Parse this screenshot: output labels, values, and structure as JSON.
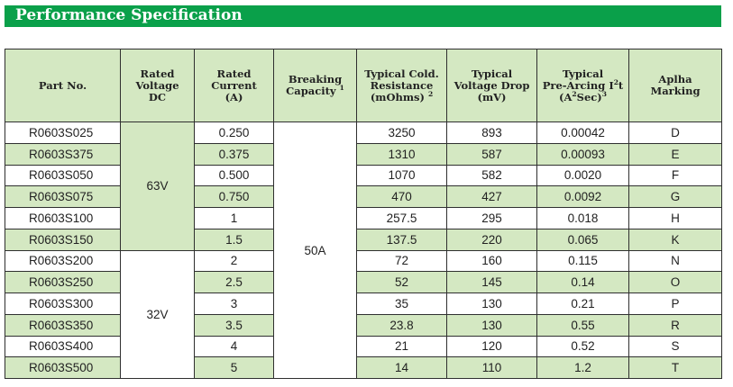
{
  "title": "Performance Specification",
  "columns": {
    "part": [
      "Part No."
    ],
    "voltage": [
      "Rated",
      "Voltage",
      "DC"
    ],
    "current": [
      "Rated",
      "Current",
      "(A)"
    ],
    "breaking": [
      "Breaking",
      "Capacity"
    ],
    "breaking_sup": "1",
    "resistance": [
      "Typical Cold.",
      "Resistance",
      "(mOhms)"
    ],
    "resistance_sup": "2",
    "drop": [
      "Typical",
      "Voltage Drop",
      "(mV)"
    ],
    "prearc_line1": "Typical",
    "prearc_line2a": "Pre-Arcing I",
    "prearc_line2sup": "2",
    "prearc_line2b": "t",
    "prearc_line3a": "(A",
    "prearc_line3sup": "2",
    "prearc_line3b": "Sec)",
    "prearc_line3sup2": "3",
    "marking": [
      "Aplha",
      "Marking"
    ]
  },
  "groups": {
    "voltage_63": "63V",
    "voltage_32": "32V",
    "breaking": "50A"
  },
  "rows": [
    {
      "part": "R0603S025",
      "current": "0.250",
      "resistance": "3250",
      "drop": "893",
      "prearc": "0.00042",
      "marking": "D"
    },
    {
      "part": "R0603S375",
      "current": "0.375",
      "resistance": "1310",
      "drop": "587",
      "prearc": "0.00093",
      "marking": "E"
    },
    {
      "part": "R0603S050",
      "current": "0.500",
      "resistance": "1070",
      "drop": "582",
      "prearc": "0.0020",
      "marking": "F"
    },
    {
      "part": "R0603S075",
      "current": "0.750",
      "resistance": "470",
      "drop": "427",
      "prearc": "0.0092",
      "marking": "G"
    },
    {
      "part": "R0603S100",
      "current": "1",
      "resistance": "257.5",
      "drop": "295",
      "prearc": "0.018",
      "marking": "H"
    },
    {
      "part": "R0603S150",
      "current": "1.5",
      "resistance": "137.5",
      "drop": "220",
      "prearc": "0.065",
      "marking": "K"
    },
    {
      "part": "R0603S200",
      "current": "2",
      "resistance": "72",
      "drop": "160",
      "prearc": "0.115",
      "marking": "N"
    },
    {
      "part": "R0603S250",
      "current": "2.5",
      "resistance": "52",
      "drop": "145",
      "prearc": "0.14",
      "marking": "O"
    },
    {
      "part": "R0603S300",
      "current": "3",
      "resistance": "35",
      "drop": "130",
      "prearc": "0.21",
      "marking": "P"
    },
    {
      "part": "R0603S350",
      "current": "3.5",
      "resistance": "23.8",
      "drop": "130",
      "prearc": "0.55",
      "marking": "R"
    },
    {
      "part": "R0603S400",
      "current": "4",
      "resistance": "21",
      "drop": "120",
      "prearc": "0.52",
      "marking": "S"
    },
    {
      "part": "R0603S500",
      "current": "5",
      "resistance": "14",
      "drop": "110",
      "prearc": "1.2",
      "marking": "T"
    }
  ]
}
